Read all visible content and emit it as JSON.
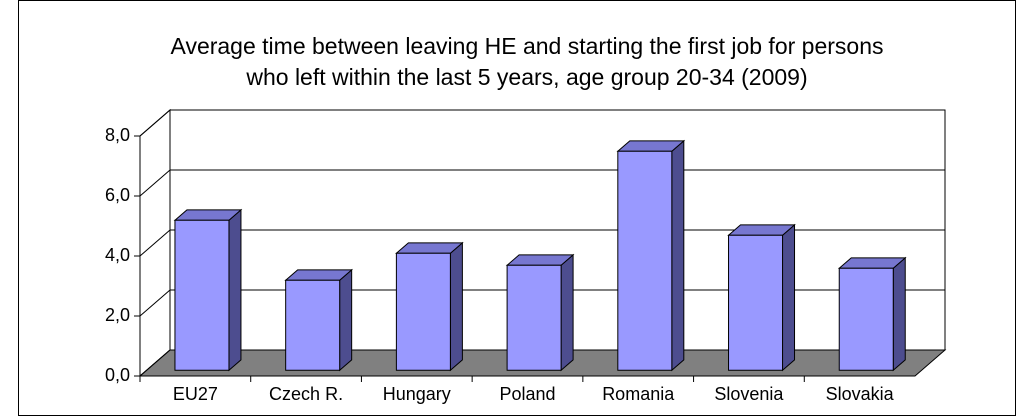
{
  "chart_data": {
    "type": "bar3d",
    "title": [
      "Average time between leaving HE and starting the first job for persons",
      "who left within the last 5 years, age group 20-34 (2009)"
    ],
    "categories": [
      "EU27",
      "Czech R.",
      "Hungary",
      "Poland",
      "Romania",
      "Slovenia",
      "Slovakia"
    ],
    "values": [
      5.0,
      3.0,
      3.9,
      3.5,
      7.3,
      4.5,
      3.4
    ],
    "color": "#9999ff",
    "ylim": [
      0,
      8
    ],
    "yticks": [
      {
        "value": 0,
        "label": "0,0"
      },
      {
        "value": 2,
        "label": "2,0"
      },
      {
        "value": 4,
        "label": "4,0"
      },
      {
        "value": 6,
        "label": "6,0"
      },
      {
        "value": 8,
        "label": "8,0"
      }
    ],
    "grid": true
  }
}
